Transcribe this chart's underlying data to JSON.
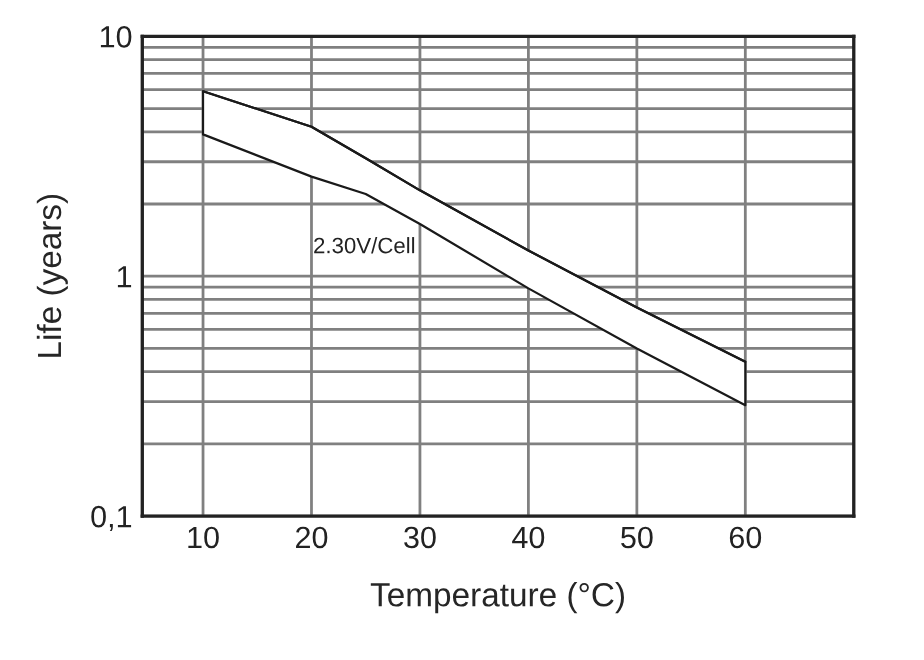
{
  "chart_data": {
    "type": "line",
    "xlabel": "Temperature (°C)",
    "ylabel": "Life (years)",
    "x": [
      10,
      20,
      25,
      30,
      40,
      50,
      60
    ],
    "series": [
      {
        "color": "#1a1a1a",
        "values": [
          5.9,
          4.2,
          3.1,
          2.28,
          1.28,
          0.74,
          0.44
        ],
        "lower": [
          3.9,
          2.6,
          2.2,
          1.65,
          0.89,
          0.5,
          0.29
        ],
        "upper": [
          5.9,
          4.2,
          3.1,
          2.28,
          1.28,
          0.74,
          0.44
        ]
      }
    ],
    "log": "y",
    "xlim": [
      4.4,
      70
    ],
    "xticks": [
      10,
      20,
      30,
      40,
      50,
      60
    ],
    "ylim": [
      0.1,
      10
    ],
    "yticks": [
      {
        "value": 0.1,
        "label": "0,1"
      },
      {
        "value": 0.2,
        "label": null
      },
      {
        "value": 0.3,
        "label": null
      },
      {
        "value": 0.4,
        "label": null
      },
      {
        "value": 0.5,
        "label": null
      },
      {
        "value": 0.6,
        "label": null
      },
      {
        "value": 0.7,
        "label": null
      },
      {
        "value": 0.8,
        "label": null
      },
      {
        "value": 0.9,
        "label": null
      },
      {
        "value": 1,
        "label": "1"
      },
      {
        "value": 2,
        "label": null
      },
      {
        "value": 3,
        "label": null
      },
      {
        "value": 4,
        "label": null
      },
      {
        "value": 5,
        "label": null
      },
      {
        "value": 6,
        "label": null
      },
      {
        "value": 7,
        "label": null
      },
      {
        "value": 8,
        "label": null
      },
      {
        "value": 9,
        "label": null
      },
      {
        "value": 10,
        "label": "10"
      }
    ],
    "grid": true,
    "marker": "none",
    "line_style": "solid",
    "annotations": [
      "2.30V/Cell"
    ]
  }
}
